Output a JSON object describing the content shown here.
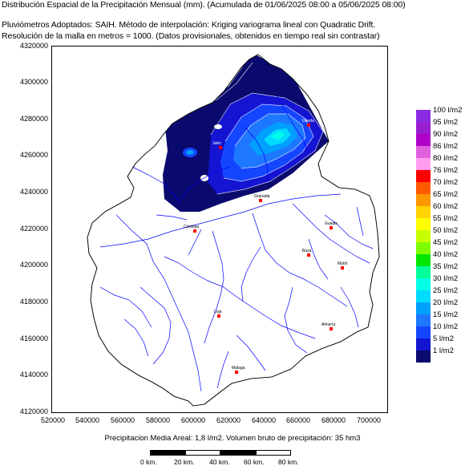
{
  "header": {
    "line1": "Distribución Espacial de la Precipitación Mensual (mm). (Acumulada de 01/06/2025 08:00 a 05/06/2025 08:00)",
    "line2": "Pluviómetros Adoptados: SAIH.  Método de interpolación: Kriging variograma lineal con Quadratic Drift.",
    "line3": "Resolución de la malla en metros = 1000. (Datos provisionales, obtenidos en tiempo real sin contrastar)"
  },
  "axes": {
    "y_ticks": [
      "4320000",
      "4300000",
      "4280000",
      "4260000",
      "4240000",
      "4220000",
      "4200000",
      "4180000",
      "4160000",
      "4140000",
      "4120000"
    ],
    "x_ticks": [
      "520000",
      "540000",
      "560000",
      "580000",
      "600000",
      "620000",
      "640000",
      "660000",
      "680000",
      "700000"
    ]
  },
  "legend": [
    {
      "label": "100 l/m2",
      "color": "#8a2be2"
    },
    {
      "label": "95 l/m2",
      "color": "#9a1fd0"
    },
    {
      "label": "90 l/m2",
      "color": "#b000c8"
    },
    {
      "label": "86 l/m2",
      "color": "#e060e0"
    },
    {
      "label": "80 l/m2",
      "color": "#ff9ef0"
    },
    {
      "label": "76 l/m2",
      "color": "#ff0000"
    },
    {
      "label": "70 l/m2",
      "color": "#ff5a00"
    },
    {
      "label": "65 l/m2",
      "color": "#ff9600"
    },
    {
      "label": "60 l/m2",
      "color": "#ffd200"
    },
    {
      "label": "55 l/m2",
      "color": "#ffff00"
    },
    {
      "label": "50 l/m2",
      "color": "#c8ff00"
    },
    {
      "label": "45 l/m2",
      "color": "#7dff00"
    },
    {
      "label": "40 l/m2",
      "color": "#00e600"
    },
    {
      "label": "35 l/m2",
      "color": "#00ff9a"
    },
    {
      "label": "30 l/m2",
      "color": "#00ffe6"
    },
    {
      "label": "25 l/m2",
      "color": "#00dcff"
    },
    {
      "label": "20 l/m2",
      "color": "#00a0ff"
    },
    {
      "label": "15 l/m2",
      "color": "#1e78ff"
    },
    {
      "label": "10 l/m2",
      "color": "#1446ff"
    },
    {
      "label": "5 l/m2",
      "color": "#1414d2"
    },
    {
      "label": "1 l/m2",
      "color": "#0a0a6e"
    }
  ],
  "towns": [
    "Jaén",
    "Granada",
    "Córdoba",
    "Almería",
    "Málaga",
    "Motril",
    "Guadix",
    "Baza",
    "Loja",
    "Úbeda"
  ],
  "footer": "Precipitacion Media Areal: 1,8 l/m2. Volumen bruto de precipitación: 35 hm3",
  "scale_labels": [
    "0 km.",
    "20 km.",
    "40 km.",
    "60 km.",
    "80 km."
  ]
}
